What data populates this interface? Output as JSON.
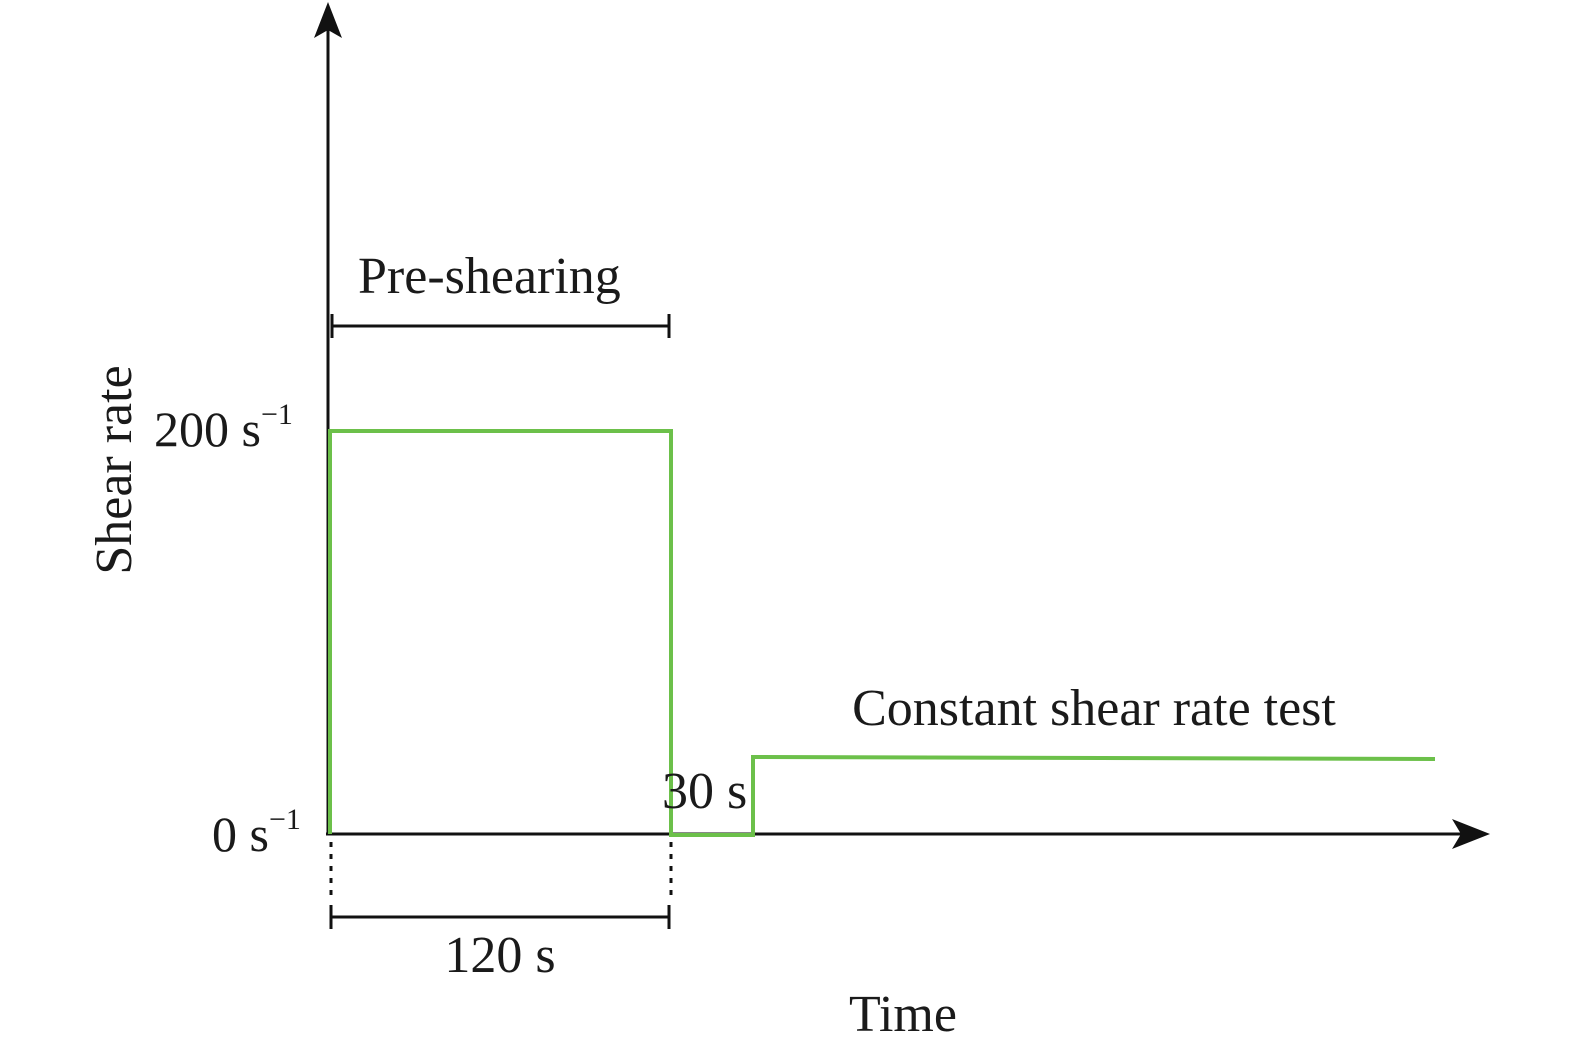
{
  "diagram": {
    "y_axis_label": "Shear rate",
    "x_axis_label": "Time",
    "tick_high": {
      "value": "200 s",
      "exp": "−1"
    },
    "tick_low": {
      "value": "0 s",
      "exp": "−1"
    },
    "pre_shearing_label": "Pre-shearing",
    "duration_pre": "120 s",
    "duration_rest": "30 s",
    "test_label": "Constant shear rate test"
  },
  "colors": {
    "profile": "#6cc04a",
    "axis": "#111111"
  }
}
